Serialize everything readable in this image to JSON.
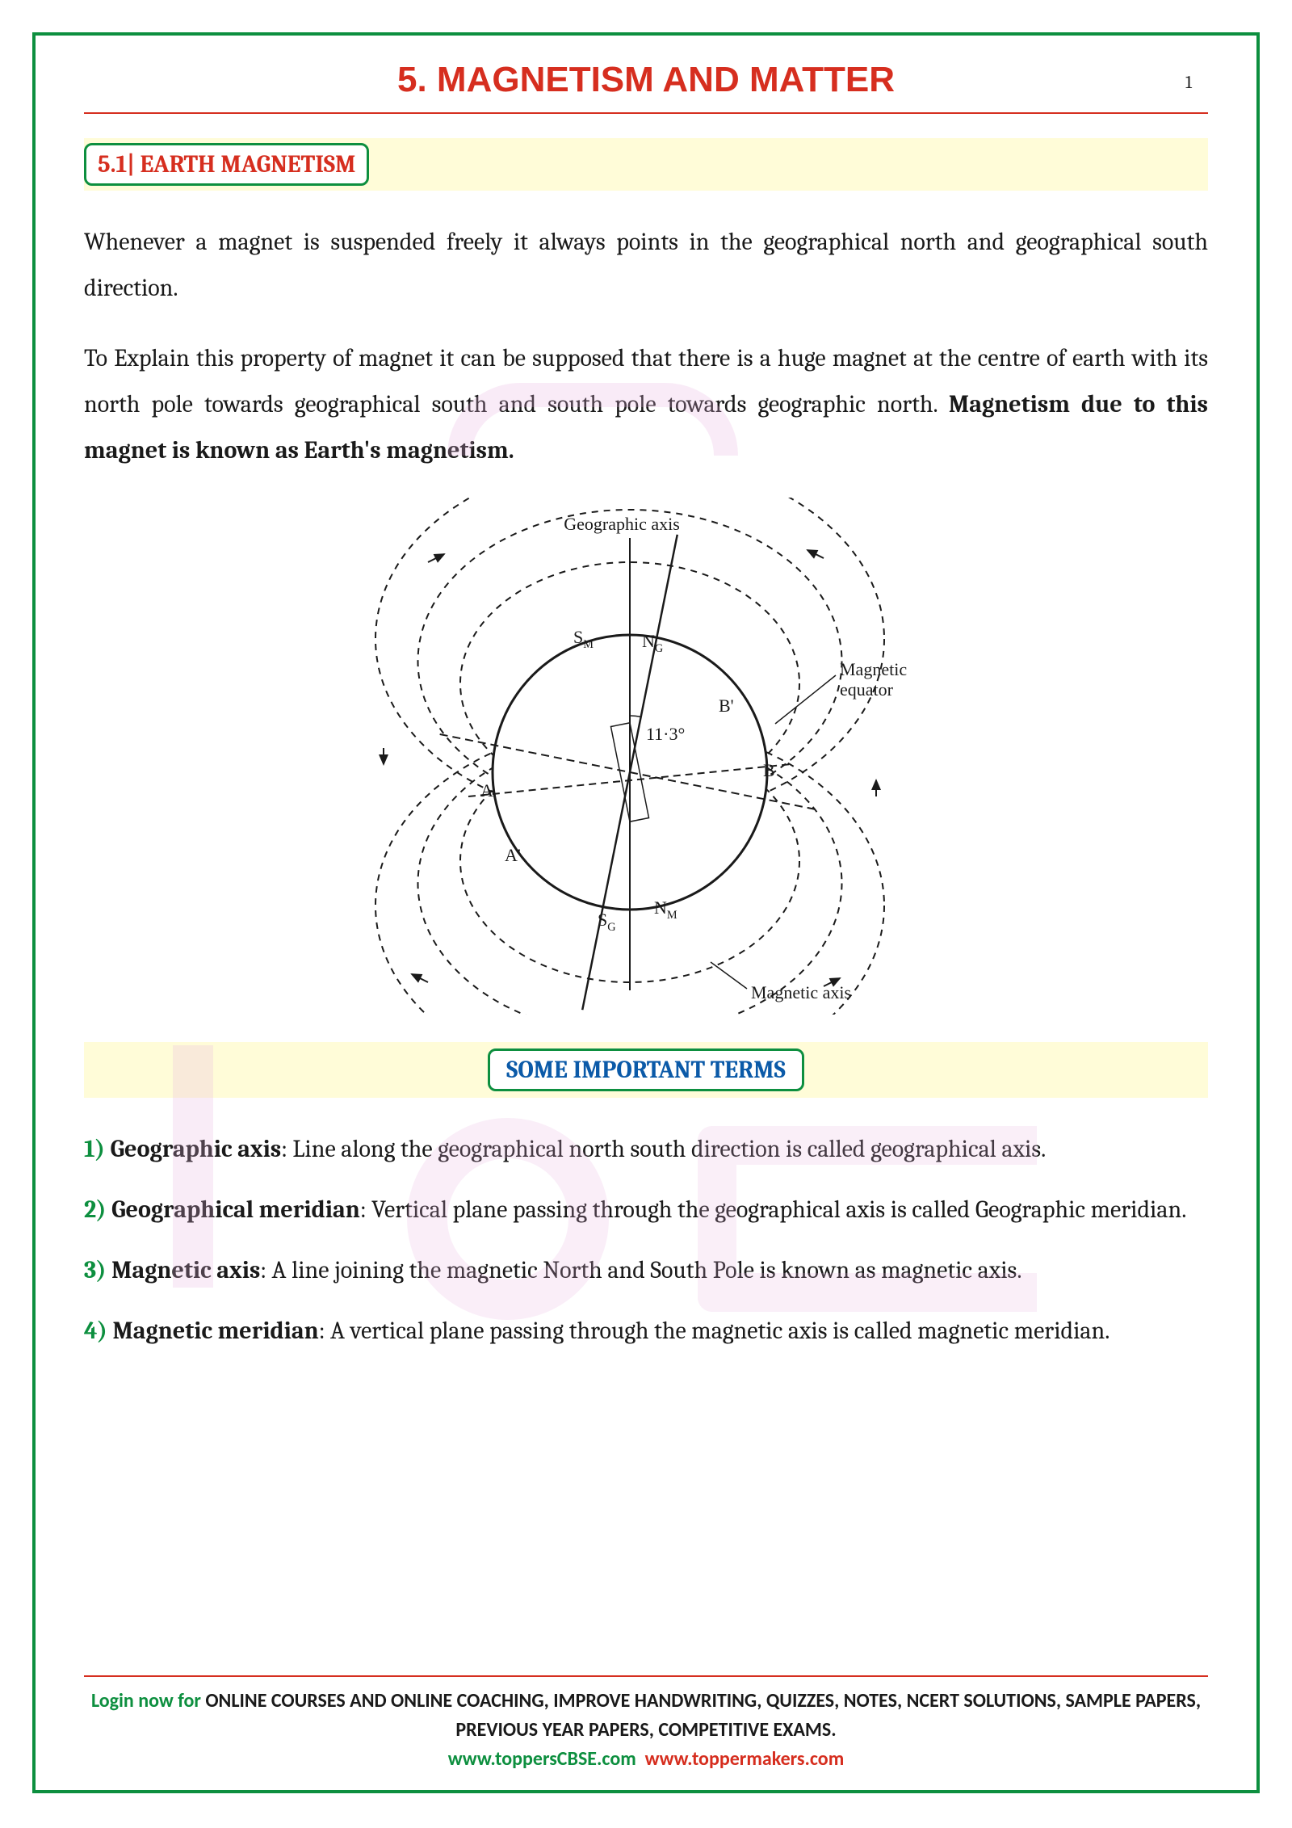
{
  "chapter": {
    "title": "5. MAGNETISM AND MATTER",
    "page_number": "1"
  },
  "section": {
    "label": "5.1| EARTH MAGNETISM"
  },
  "paragraphs": {
    "p1": "Whenever a magnet is suspended freely it always points in the geographical north and geographical south direction.",
    "p2_a": "To Explain this property of magnet it can be supposed that there is a huge magnet at the centre of earth with its north pole towards geographical south and south pole towards geographic north. ",
    "p2_b": "Magnetism due to this magnet is known as Earth's magnetism."
  },
  "diagram": {
    "type": "diagram",
    "labels": {
      "geo_axis": "Geographic axis",
      "mag_equator": "Magnetic equator",
      "mag_axis": "Magnetic axis",
      "angle": "11·3°",
      "SM": "S",
      "SM_sub": "M",
      "NG": "N",
      "NG_sub": "G",
      "SG": "S",
      "SG_sub": "G",
      "NM": "N",
      "NM_sub": "M",
      "A": "A",
      "Ap": "A'",
      "B": "B",
      "Bp": "B'"
    },
    "colors": {
      "stroke": "#1a1a1a",
      "bg": "#ffffff"
    },
    "fontsize": 22,
    "earth_radius": 170,
    "field_radii": [
      200,
      250,
      300
    ],
    "tilt_deg": 11.3
  },
  "terms_heading": "SOME IMPORTANT TERMS",
  "terms": [
    {
      "n": "1)",
      "name": "Geographic axis",
      "def": ":  Line along the geographical north south direction is called geographical axis."
    },
    {
      "n": "2)",
      "name": "Geographical meridian",
      "def": ":  Vertical plane passing through the geographical axis is called Geographic meridian."
    },
    {
      "n": "3)",
      "name": "Magnetic axis",
      "def": ":  A line joining the magnetic North and South Pole is known as magnetic axis."
    },
    {
      "n": "4)",
      "name": "Magnetic meridian",
      "def": ":  A vertical plane passing through the magnetic axis is called magnetic meridian."
    }
  ],
  "footer": {
    "login": "Login now for ",
    "bold": "ONLINE COURSES AND ONLINE COACHING, IMPROVE HANDWRITING, QUIZZES, NOTES, NCERT SOLUTIONS, SAMPLE PAPERS, PREVIOUS YEAR PAPERS, COMPETITIVE EXAMS.",
    "link1": "www.toppersCBSE.com",
    "link2": "www.toppermakers.com"
  }
}
